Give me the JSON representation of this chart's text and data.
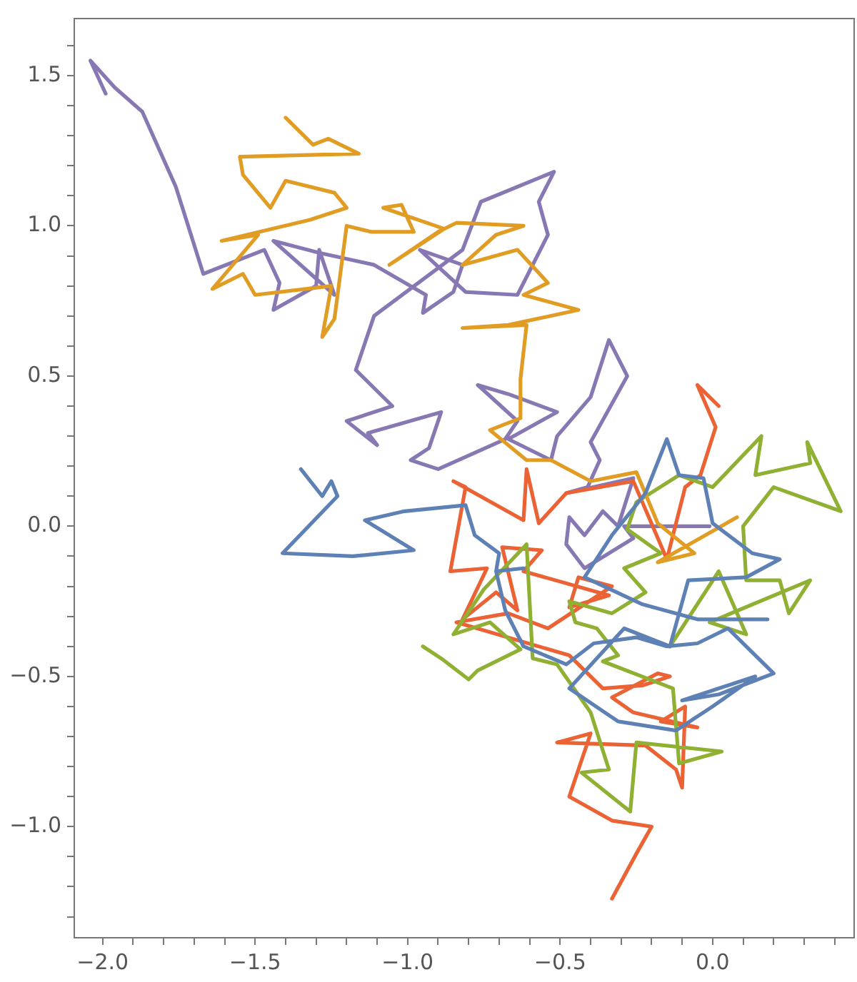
{
  "chart_data": {
    "type": "line",
    "marker": "none",
    "grid": false,
    "legend": false,
    "xlim": [
      -2.093,
      0.464
    ],
    "ylim": [
      -1.37,
      1.69
    ],
    "xticks": [
      {
        "value": -2,
        "label": "−2.0"
      },
      {
        "value": -1.9,
        "label": null
      },
      {
        "value": -1.8,
        "label": null
      },
      {
        "value": -1.7,
        "label": null
      },
      {
        "value": -1.6,
        "label": null
      },
      {
        "value": -1.5,
        "label": "−1.5"
      },
      {
        "value": -1.4,
        "label": null
      },
      {
        "value": -1.3,
        "label": null
      },
      {
        "value": -1.2,
        "label": null
      },
      {
        "value": -1.1,
        "label": null
      },
      {
        "value": -1,
        "label": "−1.0"
      },
      {
        "value": -0.9,
        "label": null
      },
      {
        "value": -0.8,
        "label": null
      },
      {
        "value": -0.7,
        "label": null
      },
      {
        "value": -0.6,
        "label": null
      },
      {
        "value": -0.5,
        "label": "−0.5"
      },
      {
        "value": -0.4,
        "label": null
      },
      {
        "value": -0.3,
        "label": null
      },
      {
        "value": -0.2,
        "label": null
      },
      {
        "value": -0.1,
        "label": null
      },
      {
        "value": 0,
        "label": "0.0"
      },
      {
        "value": 0.1,
        "label": null
      },
      {
        "value": 0.2,
        "label": null
      },
      {
        "value": 0.3,
        "label": null
      },
      {
        "value": 0.4,
        "label": null
      }
    ],
    "yticks": [
      {
        "value": -1.3,
        "label": null
      },
      {
        "value": -1.2,
        "label": null
      },
      {
        "value": -1.1,
        "label": null
      },
      {
        "value": -1,
        "label": "−1.0"
      },
      {
        "value": -0.9,
        "label": null
      },
      {
        "value": -0.8,
        "label": null
      },
      {
        "value": -0.7,
        "label": null
      },
      {
        "value": -0.6,
        "label": null
      },
      {
        "value": -0.5,
        "label": "−0.5"
      },
      {
        "value": -0.4,
        "label": null
      },
      {
        "value": -0.3,
        "label": null
      },
      {
        "value": -0.2,
        "label": null
      },
      {
        "value": -0.1,
        "label": null
      },
      {
        "value": 0,
        "label": "0.0"
      },
      {
        "value": 0.1,
        "label": null
      },
      {
        "value": 0.2,
        "label": null
      },
      {
        "value": 0.3,
        "label": null
      },
      {
        "value": 0.4,
        "label": null
      },
      {
        "value": 0.5,
        "label": "0.5"
      },
      {
        "value": 0.6,
        "label": null
      },
      {
        "value": 0.7,
        "label": null
      },
      {
        "value": 0.8,
        "label": null
      },
      {
        "value": 0.9,
        "label": null
      },
      {
        "value": 1,
        "label": "1.0"
      },
      {
        "value": 1.1,
        "label": null
      },
      {
        "value": 1.2,
        "label": null
      },
      {
        "value": 1.3,
        "label": null
      },
      {
        "value": 1.4,
        "label": null
      },
      {
        "value": 1.5,
        "label": "1.5"
      },
      {
        "value": 1.6,
        "label": null
      }
    ],
    "series": [
      {
        "color": "#5e81b5",
        "x": [
          -1.35,
          -1.28,
          -1.25,
          -1.23,
          -1.41,
          -1.18,
          -0.98,
          -1.14,
          -1.01,
          -0.81,
          -0.78,
          -0.7,
          -0.71,
          -0.62,
          -0.71,
          -0.68,
          -0.62,
          -0.48,
          -0.39,
          -0.25,
          -0.15,
          -0.05,
          0.05,
          0.13,
          0.2,
          0.02,
          -0.1,
          0.14,
          0,
          -0.12,
          -0.31,
          -0.47,
          -0.29,
          -0.14,
          -0.08,
          0.11,
          0.22,
          0.13,
          0,
          -0.03,
          -0.11,
          -0.15,
          -0.22,
          -0.33,
          -0.42,
          -0.23,
          -0.05,
          0.18
        ],
        "values": [
          0.19,
          0.1,
          0.15,
          0.1,
          -0.09,
          -0.1,
          -0.08,
          0.02,
          0.05,
          0.07,
          -0.03,
          -0.09,
          -0.15,
          -0.14,
          -0.15,
          -0.28,
          -0.4,
          -0.46,
          -0.39,
          -0.37,
          -0.4,
          -0.39,
          -0.34,
          -0.42,
          -0.49,
          -0.56,
          -0.58,
          -0.5,
          -0.6,
          -0.68,
          -0.65,
          -0.54,
          -0.34,
          -0.4,
          -0.18,
          -0.17,
          -0.11,
          -0.09,
          0.01,
          0.16,
          0.17,
          0.29,
          0.11,
          -0.03,
          -0.17,
          -0.26,
          -0.31,
          -0.31
        ]
      },
      {
        "color": "#e19c24",
        "x": [
          -1.4,
          -1.31,
          -1.26,
          -1.16,
          -1.55,
          -1.54,
          -1.45,
          -1.4,
          -1.24,
          -1.2,
          -1.32,
          -1.61,
          -1.49,
          -1.64,
          -1.54,
          -1.5,
          -1.25,
          -1.28,
          -1.24,
          -1.2,
          -1.12,
          -0.98,
          -1.02,
          -1.08,
          -0.88,
          -1.06,
          -0.9,
          -0.84,
          -0.62,
          -0.71,
          -0.82,
          -0.64,
          -0.54,
          -0.62,
          -0.44,
          -0.67,
          -0.82,
          -0.61,
          -0.63,
          -0.63,
          -0.73,
          -0.61,
          -0.53,
          -0.4,
          -0.25,
          -0.18,
          -0.06,
          -0.18,
          0.08
        ],
        "values": [
          1.36,
          1.27,
          1.29,
          1.24,
          1.23,
          1.17,
          1.06,
          1.15,
          1.11,
          1.06,
          1.02,
          0.95,
          0.97,
          0.79,
          0.84,
          0.77,
          0.8,
          0.63,
          0.69,
          1,
          0.98,
          0.98,
          1.07,
          1.06,
          0.99,
          0.87,
          0.98,
          1.01,
          1,
          0.97,
          0.87,
          0.92,
          0.81,
          0.77,
          0.72,
          0.67,
          0.66,
          0.67,
          0.49,
          0.36,
          0.32,
          0.22,
          0.22,
          0.15,
          0.18,
          0.01,
          -0.09,
          -0.12,
          0.03
        ]
      },
      {
        "color": "#8fb032",
        "x": [
          -0.95,
          -0.89,
          -0.8,
          -0.77,
          -0.63,
          -0.73,
          -0.85,
          -0.75,
          -0.61,
          -0.59,
          -0.51,
          -0.4,
          -0.34,
          -0.43,
          -0.27,
          -0.25,
          0.03,
          -0.11,
          -0.13,
          -0.36,
          -0.31,
          -0.38,
          -0.45,
          -0.47,
          -0.33,
          -0.22,
          -0.29,
          -0.17,
          -0.28,
          -0.25,
          -0.11,
          0,
          0.16,
          0.14,
          0.32,
          0.31,
          0.42,
          0.2,
          0.1,
          0.11,
          0.22,
          0.25,
          0.32,
          -0.01,
          0.11,
          0.02,
          -0.14
        ],
        "values": [
          -0.4,
          -0.44,
          -0.51,
          -0.48,
          -0.41,
          -0.32,
          -0.36,
          -0.21,
          -0.06,
          -0.44,
          -0.46,
          -0.62,
          -0.81,
          -0.82,
          -0.95,
          -0.72,
          -0.75,
          -0.79,
          -0.54,
          -0.45,
          -0.43,
          -0.34,
          -0.32,
          -0.25,
          -0.29,
          -0.22,
          -0.14,
          -0.09,
          -0.01,
          0.08,
          0.17,
          0.13,
          0.3,
          0.17,
          0.21,
          0.28,
          0.05,
          0.13,
          0,
          -0.18,
          -0.18,
          -0.29,
          -0.18,
          -0.32,
          -0.36,
          -0.15,
          -0.4
        ]
      },
      {
        "color": "#eb6235",
        "x": [
          0.02,
          -0.05,
          0.01,
          -0.04,
          -0.09,
          -0.15,
          -0.26,
          -0.48,
          -0.57,
          -0.61,
          -0.62,
          -0.85,
          -0.81,
          -0.86,
          -0.74,
          -0.82,
          -0.71,
          -0.64,
          -0.69,
          -0.56,
          -0.62,
          -0.34,
          -0.47,
          -0.44,
          -0.33,
          -0.54,
          -0.67,
          -0.84,
          -0.47,
          -0.36,
          -0.23,
          -0.14,
          -0.18,
          -0.33,
          -0.26,
          -0.05,
          -0.17,
          -0.09,
          -0.1,
          -0.12,
          -0.22,
          -0.51,
          -0.4,
          -0.47,
          -0.33,
          -0.2,
          -0.25,
          -0.33
        ],
        "values": [
          0.4,
          0.47,
          0.33,
          0.17,
          0.13,
          -0.11,
          0.15,
          0.11,
          0.01,
          0.19,
          0.02,
          0.15,
          0.13,
          -0.15,
          -0.14,
          -0.31,
          -0.22,
          -0.28,
          -0.07,
          -0.08,
          -0.15,
          -0.23,
          -0.27,
          -0.17,
          -0.2,
          -0.34,
          -0.29,
          -0.32,
          -0.43,
          -0.54,
          -0.53,
          -0.5,
          -0.49,
          -0.57,
          -0.62,
          -0.67,
          -0.65,
          -0.6,
          -0.87,
          -0.81,
          -0.73,
          -0.72,
          -0.69,
          -0.9,
          -0.98,
          -1,
          -1.09,
          -1.24
        ]
      },
      {
        "color": "#8778b3",
        "x": [
          -1.99,
          -2.04,
          -1.96,
          -1.87,
          -1.76,
          -1.67,
          -1.47,
          -1.42,
          -1.44,
          -1.3,
          -1.29,
          -1.24,
          -1.44,
          -1.29,
          -1.11,
          -0.94,
          -0.95,
          -0.85,
          -0.82,
          -0.96,
          -0.81,
          -0.64,
          -0.54,
          -0.57,
          -0.52,
          -0.76,
          -0.82,
          -1.11,
          -1.17,
          -1.05,
          -1.2,
          -1.1,
          -1.13,
          -0.89,
          -0.93,
          -0.99,
          -0.9,
          -0.68,
          -0.64,
          -0.77,
          -0.67,
          -0.51,
          -0.67,
          -0.53,
          -0.51,
          -0.4,
          -0.34,
          -0.28,
          -0.4,
          -0.37,
          -0.41,
          -0.48,
          -0.26,
          -0.31,
          -0.36,
          -0.42,
          -0.47,
          -0.48,
          -0.42,
          -0.26,
          -0.29,
          -0.01
        ],
        "values": [
          1.44,
          1.55,
          1.46,
          1.38,
          1.13,
          0.84,
          0.92,
          0.81,
          0.72,
          0.8,
          0.92,
          0.77,
          0.95,
          0.91,
          0.87,
          0.77,
          0.71,
          0.78,
          0.87,
          0.92,
          0.78,
          0.77,
          0.97,
          1.08,
          1.18,
          1.08,
          0.92,
          0.7,
          0.52,
          0.4,
          0.35,
          0.27,
          0.31,
          0.38,
          0.26,
          0.22,
          0.19,
          0.29,
          0.35,
          0.47,
          0.44,
          0.38,
          0.29,
          0.22,
          0.3,
          0.43,
          0.62,
          0.5,
          0.28,
          0.22,
          0.13,
          0.11,
          0.16,
          0,
          0.05,
          -0.03,
          0.03,
          -0.06,
          -0.14,
          -0.04,
          0,
          0
        ]
      }
    ]
  }
}
